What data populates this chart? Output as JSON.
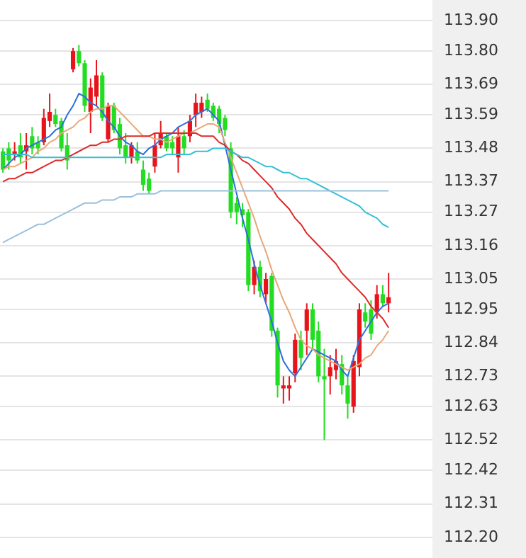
{
  "chart_data": {
    "type": "candlestick",
    "tick_labels": "y",
    "grid": "y",
    "legend": false,
    "ylim": [
      112.2,
      113.9
    ],
    "yticks": [
      {
        "value": 113.9,
        "label": "113.90"
      },
      {
        "value": 113.8,
        "label": "113.80"
      },
      {
        "value": 113.69,
        "label": "113.69"
      },
      {
        "value": 113.59,
        "label": "113.59"
      },
      {
        "value": 113.48,
        "label": "113.48"
      },
      {
        "value": 113.37,
        "label": "113.37"
      },
      {
        "value": 113.27,
        "label": "113.27"
      },
      {
        "value": 113.16,
        "label": "113.16"
      },
      {
        "value": 113.05,
        "label": "113.05"
      },
      {
        "value": 112.95,
        "label": "112.95"
      },
      {
        "value": 112.84,
        "label": "112.84"
      },
      {
        "value": 112.73,
        "label": "112.73"
      },
      {
        "value": 112.63,
        "label": "112.63"
      },
      {
        "value": 112.52,
        "label": "112.52"
      },
      {
        "value": 112.42,
        "label": "112.42"
      },
      {
        "value": 112.31,
        "label": "112.31"
      },
      {
        "value": 112.2,
        "label": "112.20"
      }
    ],
    "categories": [
      null,
      null,
      null,
      null,
      null,
      null,
      null,
      null,
      null,
      null,
      null,
      null,
      null,
      null,
      null,
      null,
      null,
      null,
      null,
      null,
      null,
      null,
      null,
      null,
      null,
      null,
      null,
      null,
      null,
      null,
      null,
      null,
      null,
      null,
      null,
      null,
      null,
      null,
      null,
      null,
      null,
      null,
      null,
      null,
      null,
      null,
      null,
      null,
      null,
      null,
      null,
      null,
      null,
      null,
      null,
      null,
      null,
      null,
      null,
      null,
      null,
      null,
      null,
      null,
      null,
      null,
      null
    ],
    "ohlc": [
      [
        113.47,
        113.48,
        113.4,
        113.41
      ],
      [
        113.48,
        113.5,
        113.41,
        113.44
      ],
      [
        113.46,
        113.5,
        113.44,
        113.47
      ],
      [
        113.49,
        113.53,
        113.43,
        113.45
      ],
      [
        113.47,
        113.53,
        113.41,
        113.49
      ],
      [
        113.52,
        113.55,
        113.46,
        113.48
      ],
      [
        113.5,
        113.52,
        113.46,
        113.48
      ],
      [
        113.5,
        113.61,
        113.49,
        113.58
      ],
      [
        113.57,
        113.66,
        113.55,
        113.6
      ],
      [
        113.59,
        113.61,
        113.55,
        113.56
      ],
      [
        113.57,
        113.58,
        113.47,
        113.48
      ],
      [
        113.49,
        113.53,
        113.41,
        113.44
      ],
      [
        113.74,
        113.81,
        113.73,
        113.8
      ],
      [
        113.8,
        113.82,
        113.75,
        113.76
      ],
      [
        113.76,
        113.77,
        113.6,
        113.62
      ],
      [
        113.6,
        113.71,
        113.53,
        113.68
      ],
      [
        113.65,
        113.77,
        113.62,
        113.72
      ],
      [
        113.72,
        113.73,
        113.57,
        113.58
      ],
      [
        113.51,
        113.63,
        113.5,
        113.62
      ],
      [
        113.62,
        113.63,
        113.53,
        113.54
      ],
      [
        113.56,
        113.58,
        113.46,
        113.48
      ],
      [
        113.49,
        113.53,
        113.43,
        113.45
      ],
      [
        113.45,
        113.5,
        113.43,
        113.49
      ],
      [
        113.47,
        113.5,
        113.43,
        113.44
      ],
      [
        113.41,
        113.44,
        113.34,
        113.36
      ],
      [
        113.38,
        113.4,
        113.33,
        113.34
      ],
      [
        113.42,
        113.53,
        113.4,
        113.49
      ],
      [
        113.49,
        113.57,
        113.48,
        113.53
      ],
      [
        113.52,
        113.53,
        113.47,
        113.48
      ],
      [
        113.5,
        113.52,
        113.46,
        113.48
      ],
      [
        113.45,
        113.55,
        113.4,
        113.52
      ],
      [
        113.52,
        113.54,
        113.46,
        113.48
      ],
      [
        113.52,
        113.59,
        113.5,
        113.57
      ],
      [
        113.59,
        113.66,
        113.55,
        113.63
      ],
      [
        113.6,
        113.65,
        113.58,
        113.63
      ],
      [
        113.64,
        113.66,
        113.6,
        113.61
      ],
      [
        113.62,
        113.63,
        113.57,
        113.58
      ],
      [
        113.61,
        113.62,
        113.53,
        113.56
      ],
      [
        113.58,
        113.59,
        113.52,
        113.54
      ],
      [
        113.48,
        113.5,
        113.25,
        113.27
      ],
      [
        113.3,
        113.32,
        113.23,
        113.27
      ],
      [
        113.28,
        113.3,
        113.22,
        113.26
      ],
      [
        113.27,
        113.28,
        113.01,
        113.03
      ],
      [
        113.03,
        113.11,
        113.0,
        113.09
      ],
      [
        113.09,
        113.11,
        112.99,
        113.01
      ],
      [
        113.0,
        113.07,
        112.97,
        113.05
      ],
      [
        113.06,
        113.07,
        112.86,
        112.88
      ],
      [
        112.88,
        112.89,
        112.66,
        112.7
      ],
      [
        112.69,
        112.73,
        112.64,
        112.7
      ],
      [
        112.69,
        112.73,
        112.65,
        112.7
      ],
      [
        112.74,
        112.87,
        112.71,
        112.85
      ],
      [
        112.85,
        112.88,
        112.75,
        112.79
      ],
      [
        112.88,
        112.97,
        112.8,
        112.95
      ],
      [
        112.95,
        112.97,
        112.82,
        112.85
      ],
      [
        112.88,
        112.91,
        112.71,
        112.73
      ],
      [
        112.73,
        112.82,
        112.52,
        112.72
      ],
      [
        112.73,
        112.8,
        112.67,
        112.76
      ],
      [
        112.75,
        112.82,
        112.72,
        112.78
      ],
      [
        112.77,
        112.8,
        112.67,
        112.7
      ],
      [
        112.7,
        112.73,
        112.59,
        112.64
      ],
      [
        112.63,
        112.8,
        112.61,
        112.78
      ],
      [
        112.76,
        112.97,
        112.73,
        112.95
      ],
      [
        112.94,
        112.97,
        112.89,
        112.91
      ],
      [
        112.95,
        112.98,
        112.85,
        112.87
      ],
      [
        112.94,
        113.03,
        112.92,
        113.0
      ],
      [
        113.0,
        113.03,
        112.96,
        112.97
      ],
      [
        112.97,
        113.07,
        112.94,
        112.99
      ]
    ],
    "colors": [
      "#22dd22",
      "#22dd22",
      "#e8141c",
      "#22dd22",
      "#e8141c",
      "#22dd22",
      "#22dd22",
      "#e8141c",
      "#e8141c",
      "#22dd22",
      "#22dd22",
      "#22dd22",
      "#e8141c",
      "#22dd22",
      "#22dd22",
      "#e8141c",
      "#e8141c",
      "#22dd22",
      "#e8141c",
      "#22dd22",
      "#22dd22",
      "#22dd22",
      "#e8141c",
      "#22dd22",
      "#22dd22",
      "#22dd22",
      "#e8141c",
      "#e8141c",
      "#22dd22",
      "#22dd22",
      "#e8141c",
      "#22dd22",
      "#e8141c",
      "#e8141c",
      "#e8141c",
      "#22dd22",
      "#22dd22",
      "#22dd22",
      "#22dd22",
      "#22dd22",
      "#22dd22",
      "#22dd22",
      "#22dd22",
      "#e8141c",
      "#22dd22",
      "#e8141c",
      "#22dd22",
      "#22dd22",
      "#e8141c",
      "#e8141c",
      "#e8141c",
      "#22dd22",
      "#e8141c",
      "#22dd22",
      "#22dd22",
      "#22dd22",
      "#e8141c",
      "#e8141c",
      "#22dd22",
      "#22dd22",
      "#e8141c",
      "#e8141c",
      "#22dd22",
      "#22dd22",
      "#e8141c",
      "#22dd22",
      "#e8141c"
    ],
    "series": [
      {
        "type": "line",
        "color": "#9cc0dc",
        "values": [
          113.17,
          113.18,
          113.19,
          113.2,
          113.21,
          113.22,
          113.23,
          113.23,
          113.24,
          113.25,
          113.26,
          113.27,
          113.28,
          113.29,
          113.3,
          113.3,
          113.3,
          113.31,
          113.31,
          113.31,
          113.32,
          113.32,
          113.32,
          113.33,
          113.33,
          113.33,
          113.33,
          113.34,
          113.34,
          113.34,
          113.34,
          113.34,
          113.34,
          113.34,
          113.34,
          113.34,
          113.34,
          113.34,
          113.34,
          113.34,
          113.34,
          113.34,
          113.34,
          113.34,
          113.34,
          113.34,
          113.34,
          113.34,
          113.34,
          113.34,
          113.34,
          113.34,
          113.34,
          113.34,
          113.34,
          113.34,
          113.34,
          113.34,
          113.34,
          113.34,
          113.34,
          113.34,
          113.34,
          113.34,
          113.34,
          113.34,
          113.34
        ]
      },
      {
        "type": "line",
        "color": "#36bfd6",
        "values": [
          113.46,
          113.46,
          113.46,
          113.46,
          113.46,
          113.45,
          113.45,
          113.45,
          113.45,
          113.45,
          113.45,
          113.45,
          113.45,
          113.45,
          113.45,
          113.45,
          113.45,
          113.45,
          113.45,
          113.45,
          113.45,
          113.45,
          113.45,
          113.45,
          113.45,
          113.45,
          113.45,
          113.45,
          113.46,
          113.46,
          113.46,
          113.46,
          113.46,
          113.47,
          113.47,
          113.47,
          113.48,
          113.48,
          113.48,
          113.47,
          113.46,
          113.45,
          113.45,
          113.44,
          113.43,
          113.42,
          113.42,
          113.41,
          113.4,
          113.4,
          113.39,
          113.38,
          113.38,
          113.37,
          113.36,
          113.35,
          113.34,
          113.33,
          113.32,
          113.31,
          113.3,
          113.29,
          113.27,
          113.26,
          113.25,
          113.23,
          113.22
        ]
      },
      {
        "type": "line",
        "color": "#e02828",
        "values": [
          113.37,
          113.38,
          113.38,
          113.39,
          113.4,
          113.4,
          113.41,
          113.42,
          113.43,
          113.44,
          113.44,
          113.45,
          113.46,
          113.47,
          113.48,
          113.49,
          113.49,
          113.5,
          113.5,
          113.51,
          113.51,
          113.52,
          113.52,
          113.52,
          113.52,
          113.52,
          113.53,
          113.53,
          113.53,
          113.53,
          113.53,
          113.53,
          113.53,
          113.53,
          113.52,
          113.52,
          113.52,
          113.5,
          113.49,
          113.47,
          113.46,
          113.44,
          113.43,
          113.41,
          113.39,
          113.37,
          113.35,
          113.32,
          113.3,
          113.28,
          113.25,
          113.23,
          113.2,
          113.18,
          113.16,
          113.14,
          113.12,
          113.1,
          113.07,
          113.05,
          113.03,
          113.01,
          112.99,
          112.96,
          112.94,
          112.92,
          112.89
        ]
      },
      {
        "type": "line",
        "color": "#e8a878",
        "values": [
          113.41,
          113.42,
          113.42,
          113.43,
          113.44,
          113.45,
          113.47,
          113.48,
          113.5,
          113.51,
          113.53,
          113.54,
          113.55,
          113.57,
          113.58,
          113.6,
          113.61,
          113.61,
          113.62,
          113.62,
          113.6,
          113.58,
          113.56,
          113.54,
          113.52,
          113.52,
          113.51,
          113.51,
          113.5,
          113.51,
          113.52,
          113.53,
          113.53,
          113.54,
          113.55,
          113.56,
          113.56,
          113.55,
          113.5,
          113.45,
          113.4,
          113.35,
          113.3,
          113.25,
          113.19,
          113.14,
          113.08,
          113.03,
          112.98,
          112.94,
          112.89,
          112.85,
          112.83,
          112.82,
          112.8,
          112.79,
          112.78,
          112.77,
          112.76,
          112.75,
          112.76,
          112.77,
          112.79,
          112.8,
          112.83,
          112.85,
          112.88
        ]
      },
      {
        "type": "line",
        "color": "#2f6fdf",
        "values": [
          113.41,
          113.43,
          113.45,
          113.46,
          113.48,
          113.49,
          113.5,
          113.51,
          113.52,
          113.54,
          113.55,
          113.59,
          113.62,
          113.66,
          113.65,
          113.63,
          113.62,
          113.6,
          113.57,
          113.55,
          113.52,
          113.5,
          113.49,
          113.47,
          113.46,
          113.48,
          113.49,
          113.51,
          113.52,
          113.53,
          113.55,
          113.56,
          113.57,
          113.59,
          113.6,
          113.61,
          113.59,
          113.57,
          113.49,
          113.41,
          113.33,
          113.25,
          113.18,
          113.1,
          113.03,
          112.97,
          112.91,
          112.84,
          112.78,
          112.75,
          112.73,
          112.76,
          112.79,
          112.82,
          112.81,
          112.8,
          112.79,
          112.78,
          112.75,
          112.73,
          112.79,
          112.85,
          112.88,
          112.91,
          112.94,
          112.96,
          112.97
        ]
      }
    ]
  }
}
